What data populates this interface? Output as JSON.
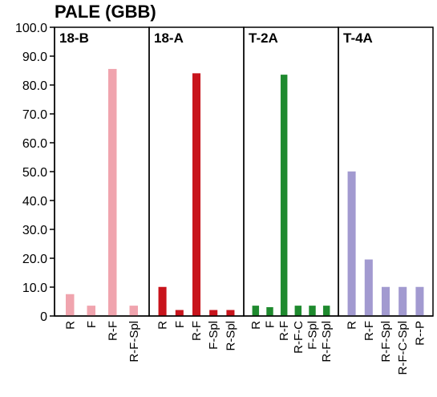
{
  "chart_data": {
    "type": "bar",
    "title": "PALE (GBB)",
    "xlabel": "",
    "ylabel": "",
    "ylim": [
      0,
      100
    ],
    "yticks": [
      "0",
      "10.0",
      "20.0",
      "30.0",
      "40.0",
      "50.0",
      "60.0",
      "70.0",
      "80.0",
      "90.0",
      "100.0"
    ],
    "grid": false,
    "legend": "none",
    "panels": [
      {
        "label": "18-B",
        "color": "#f0a4ae",
        "categories": [
          "R",
          "F",
          "R-F",
          "R-F-Spl"
        ],
        "values": [
          7.5,
          3.5,
          85.5,
          3.5
        ]
      },
      {
        "label": "18-A",
        "color": "#c8141c",
        "categories": [
          "R",
          "F",
          "R-F",
          "F-Spl",
          "R-Spl"
        ],
        "values": [
          10,
          2,
          84,
          2,
          2
        ]
      },
      {
        "label": "T-2A",
        "color": "#1e8a2e",
        "categories": [
          "R",
          "F",
          "R-F",
          "R-F-C",
          "F-Spl",
          "R-F-Spl"
        ],
        "values": [
          3.5,
          3,
          83.5,
          3.5,
          3.5,
          3.5
        ]
      },
      {
        "label": "T-4A",
        "color": "#a29ad0",
        "categories": [
          "R",
          "R-F",
          "R-F-Spl",
          "R-F-C-Spl",
          "R--P"
        ],
        "values": [
          50,
          19.5,
          10,
          10,
          10
        ]
      }
    ]
  }
}
